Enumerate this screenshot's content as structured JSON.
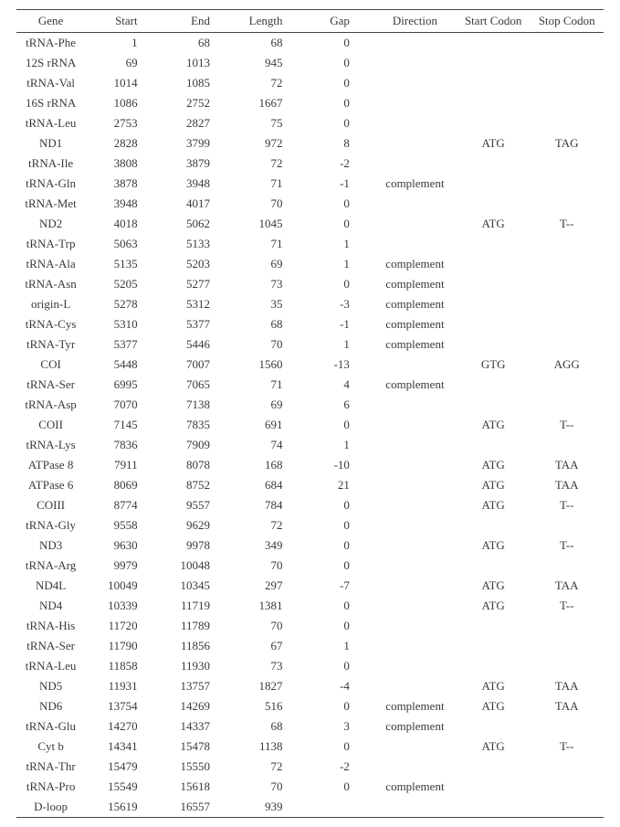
{
  "table": {
    "columns": [
      {
        "key": "gene",
        "label": "Gene",
        "class": "c-gene"
      },
      {
        "key": "start",
        "label": "Start",
        "class": "c-start"
      },
      {
        "key": "end",
        "label": "End",
        "class": "c-end"
      },
      {
        "key": "length",
        "label": "Length",
        "class": "c-len"
      },
      {
        "key": "gap",
        "label": "Gap",
        "class": "c-gap"
      },
      {
        "key": "direction",
        "label": "Direction",
        "class": "c-dir"
      },
      {
        "key": "startcodon",
        "label": "Start Codon",
        "class": "c-sc"
      },
      {
        "key": "stopcodon",
        "label": "Stop Codon",
        "class": "c-ec"
      }
    ],
    "rows": [
      {
        "gene": "tRNA-Phe",
        "start": "1",
        "end": "68",
        "length": "68",
        "gap": "0",
        "direction": "",
        "startcodon": "",
        "stopcodon": ""
      },
      {
        "gene": "12S rRNA",
        "start": "69",
        "end": "1013",
        "length": "945",
        "gap": "0",
        "direction": "",
        "startcodon": "",
        "stopcodon": ""
      },
      {
        "gene": "tRNA-Val",
        "start": "1014",
        "end": "1085",
        "length": "72",
        "gap": "0",
        "direction": "",
        "startcodon": "",
        "stopcodon": ""
      },
      {
        "gene": "16S rRNA",
        "start": "1086",
        "end": "2752",
        "length": "1667",
        "gap": "0",
        "direction": "",
        "startcodon": "",
        "stopcodon": ""
      },
      {
        "gene": "tRNA-Leu",
        "start": "2753",
        "end": "2827",
        "length": "75",
        "gap": "0",
        "direction": "",
        "startcodon": "",
        "stopcodon": ""
      },
      {
        "gene": "ND1",
        "start": "2828",
        "end": "3799",
        "length": "972",
        "gap": "8",
        "direction": "",
        "startcodon": "ATG",
        "stopcodon": "TAG"
      },
      {
        "gene": "tRNA-Ile",
        "start": "3808",
        "end": "3879",
        "length": "72",
        "gap": "-2",
        "direction": "",
        "startcodon": "",
        "stopcodon": ""
      },
      {
        "gene": "tRNA-Gln",
        "start": "3878",
        "end": "3948",
        "length": "71",
        "gap": "-1",
        "direction": "complement",
        "startcodon": "",
        "stopcodon": ""
      },
      {
        "gene": "tRNA-Met",
        "start": "3948",
        "end": "4017",
        "length": "70",
        "gap": "0",
        "direction": "",
        "startcodon": "",
        "stopcodon": ""
      },
      {
        "gene": "ND2",
        "start": "4018",
        "end": "5062",
        "length": "1045",
        "gap": "0",
        "direction": "",
        "startcodon": "ATG",
        "stopcodon": "T--"
      },
      {
        "gene": "tRNA-Trp",
        "start": "5063",
        "end": "5133",
        "length": "71",
        "gap": "1",
        "direction": "",
        "startcodon": "",
        "stopcodon": ""
      },
      {
        "gene": "tRNA-Ala",
        "start": "5135",
        "end": "5203",
        "length": "69",
        "gap": "1",
        "direction": "complement",
        "startcodon": "",
        "stopcodon": ""
      },
      {
        "gene": "tRNA-Asn",
        "start": "5205",
        "end": "5277",
        "length": "73",
        "gap": "0",
        "direction": "complement",
        "startcodon": "",
        "stopcodon": ""
      },
      {
        "gene": "origin-L",
        "start": "5278",
        "end": "5312",
        "length": "35",
        "gap": "-3",
        "direction": "complement",
        "startcodon": "",
        "stopcodon": ""
      },
      {
        "gene": "tRNA-Cys",
        "start": "5310",
        "end": "5377",
        "length": "68",
        "gap": "-1",
        "direction": "complement",
        "startcodon": "",
        "stopcodon": ""
      },
      {
        "gene": "tRNA-Tyr",
        "start": "5377",
        "end": "5446",
        "length": "70",
        "gap": "1",
        "direction": "complement",
        "startcodon": "",
        "stopcodon": ""
      },
      {
        "gene": "COI",
        "start": "5448",
        "end": "7007",
        "length": "1560",
        "gap": "-13",
        "direction": "",
        "startcodon": "GTG",
        "stopcodon": "AGG"
      },
      {
        "gene": "tRNA-Ser",
        "start": "6995",
        "end": "7065",
        "length": "71",
        "gap": "4",
        "direction": "complement",
        "startcodon": "",
        "stopcodon": ""
      },
      {
        "gene": "tRNA-Asp",
        "start": "7070",
        "end": "7138",
        "length": "69",
        "gap": "6",
        "direction": "",
        "startcodon": "",
        "stopcodon": ""
      },
      {
        "gene": "COII",
        "start": "7145",
        "end": "7835",
        "length": "691",
        "gap": "0",
        "direction": "",
        "startcodon": "ATG",
        "stopcodon": "T--"
      },
      {
        "gene": "tRNA-Lys",
        "start": "7836",
        "end": "7909",
        "length": "74",
        "gap": "1",
        "direction": "",
        "startcodon": "",
        "stopcodon": ""
      },
      {
        "gene": "ATPase 8",
        "start": "7911",
        "end": "8078",
        "length": "168",
        "gap": "-10",
        "direction": "",
        "startcodon": "ATG",
        "stopcodon": "TAA"
      },
      {
        "gene": "ATPase 6",
        "start": "8069",
        "end": "8752",
        "length": "684",
        "gap": "21",
        "direction": "",
        "startcodon": "ATG",
        "stopcodon": "TAA"
      },
      {
        "gene": "COIII",
        "start": "8774",
        "end": "9557",
        "length": "784",
        "gap": "0",
        "direction": "",
        "startcodon": "ATG",
        "stopcodon": "T--"
      },
      {
        "gene": "tRNA-Gly",
        "start": "9558",
        "end": "9629",
        "length": "72",
        "gap": "0",
        "direction": "",
        "startcodon": "",
        "stopcodon": ""
      },
      {
        "gene": "ND3",
        "start": "9630",
        "end": "9978",
        "length": "349",
        "gap": "0",
        "direction": "",
        "startcodon": "ATG",
        "stopcodon": "T--"
      },
      {
        "gene": "tRNA-Arg",
        "start": "9979",
        "end": "10048",
        "length": "70",
        "gap": "0",
        "direction": "",
        "startcodon": "",
        "stopcodon": ""
      },
      {
        "gene": "ND4L",
        "start": "10049",
        "end": "10345",
        "length": "297",
        "gap": "-7",
        "direction": "",
        "startcodon": "ATG",
        "stopcodon": "TAA"
      },
      {
        "gene": "ND4",
        "start": "10339",
        "end": "11719",
        "length": "1381",
        "gap": "0",
        "direction": "",
        "startcodon": "ATG",
        "stopcodon": "T--"
      },
      {
        "gene": "tRNA-His",
        "start": "11720",
        "end": "11789",
        "length": "70",
        "gap": "0",
        "direction": "",
        "startcodon": "",
        "stopcodon": ""
      },
      {
        "gene": "tRNA-Ser",
        "start": "11790",
        "end": "11856",
        "length": "67",
        "gap": "1",
        "direction": "",
        "startcodon": "",
        "stopcodon": ""
      },
      {
        "gene": "tRNA-Leu",
        "start": "11858",
        "end": "11930",
        "length": "73",
        "gap": "0",
        "direction": "",
        "startcodon": "",
        "stopcodon": ""
      },
      {
        "gene": "ND5",
        "start": "11931",
        "end": "13757",
        "length": "1827",
        "gap": "-4",
        "direction": "",
        "startcodon": "ATG",
        "stopcodon": "TAA"
      },
      {
        "gene": "ND6",
        "start": "13754",
        "end": "14269",
        "length": "516",
        "gap": "0",
        "direction": "complement",
        "startcodon": "ATG",
        "stopcodon": "TAA"
      },
      {
        "gene": "tRNA-Glu",
        "start": "14270",
        "end": "14337",
        "length": "68",
        "gap": "3",
        "direction": "complement",
        "startcodon": "",
        "stopcodon": ""
      },
      {
        "gene": "Cyt b",
        "start": "14341",
        "end": "15478",
        "length": "1138",
        "gap": "0",
        "direction": "",
        "startcodon": "ATG",
        "stopcodon": "T--"
      },
      {
        "gene": "tRNA-Thr",
        "start": "15479",
        "end": "15550",
        "length": "72",
        "gap": "-2",
        "direction": "",
        "startcodon": "",
        "stopcodon": ""
      },
      {
        "gene": "tRNA-Pro",
        "start": "15549",
        "end": "15618",
        "length": "70",
        "gap": "0",
        "direction": "complement",
        "startcodon": "",
        "stopcodon": ""
      },
      {
        "gene": "D-loop",
        "start": "15619",
        "end": "16557",
        "length": "939",
        "gap": "",
        "direction": "",
        "startcodon": "",
        "stopcodon": ""
      }
    ],
    "style": {
      "font_family": "Times New Roman",
      "font_size_pt": 10,
      "header_border_color": "#444444",
      "text_color": "#3a3a3a",
      "background_color": "#ffffff"
    }
  }
}
